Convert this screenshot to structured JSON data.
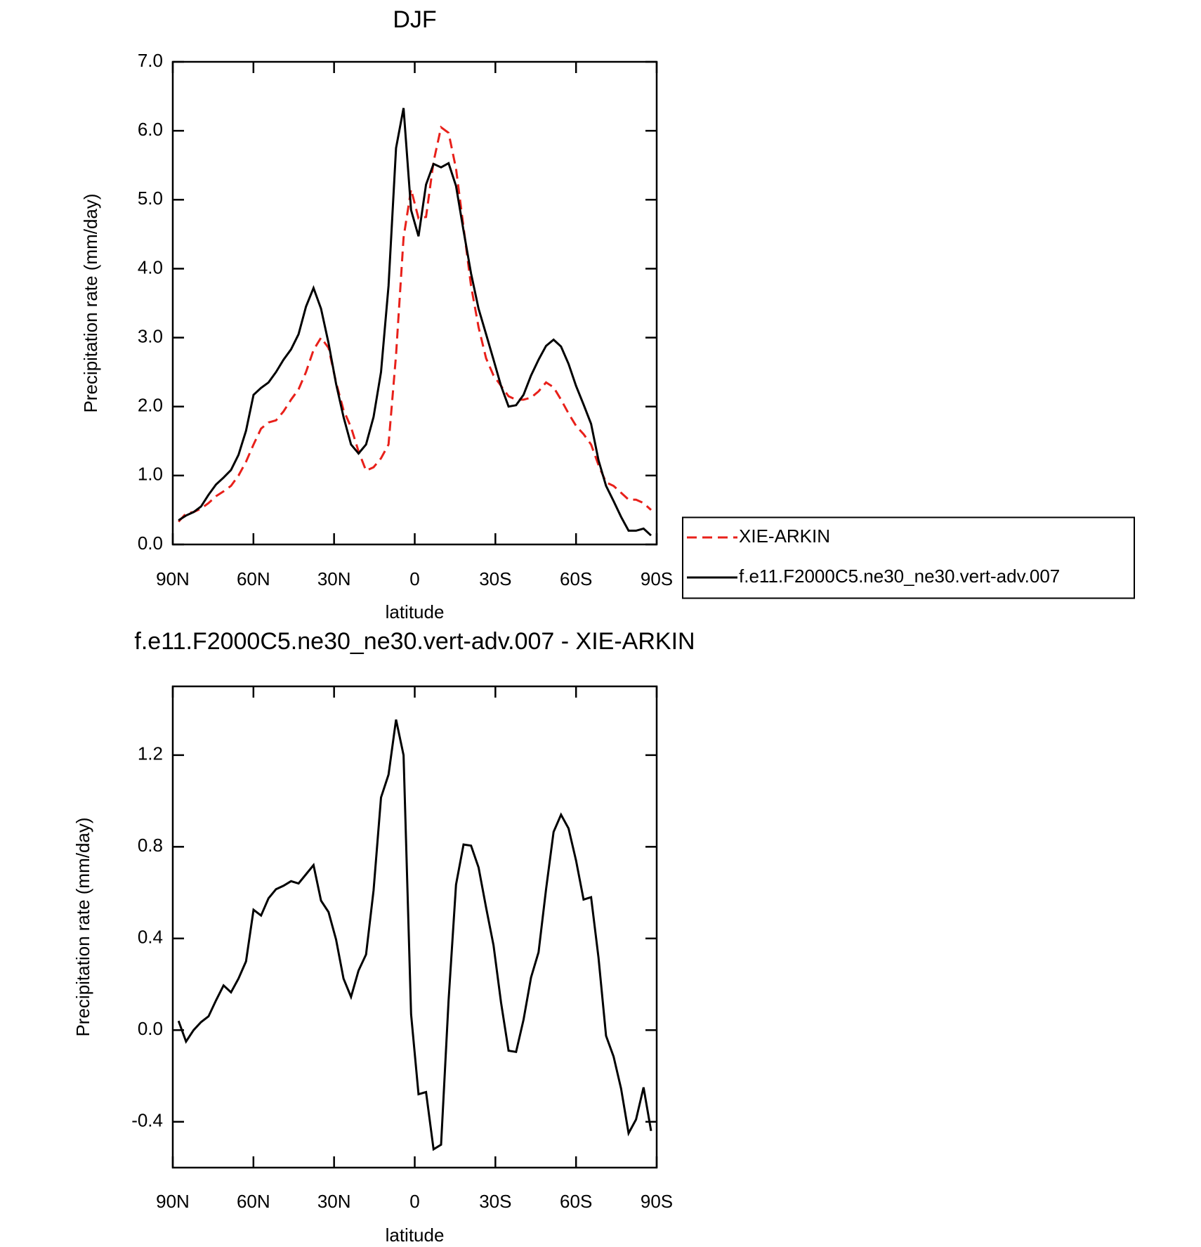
{
  "chart_data": [
    {
      "type": "line",
      "title": "DJF",
      "xlabel": "latitude",
      "ylabel": "Precipitation rate (mm/day)",
      "x": [
        87.86,
        85.07,
        82.28,
        79.49,
        76.7,
        73.91,
        71.12,
        68.33,
        65.54,
        62.75,
        59.96,
        57.17,
        54.38,
        51.59,
        48.8,
        46.01,
        43.22,
        40.43,
        37.64,
        34.85,
        32.06,
        29.27,
        26.48,
        23.69,
        20.9,
        18.11,
        15.32,
        12.53,
        9.74,
        6.95,
        4.16,
        1.37,
        -1.42,
        -4.21,
        -7.0,
        -9.79,
        -12.58,
        -15.37,
        -18.16,
        -20.95,
        -23.74,
        -26.53,
        -29.32,
        -32.11,
        -34.9,
        -37.69,
        -40.48,
        -43.27,
        -46.06,
        -48.85,
        -51.64,
        -54.43,
        -57.22,
        -60.01,
        -62.8,
        -65.59,
        -68.38,
        -71.17,
        -73.96,
        -76.75,
        -79.54,
        -82.33,
        -85.12,
        -87.91
      ],
      "series": [
        {
          "name": "XIE-ARKIN",
          "color": "#e8201a",
          "linestyle": "dashed",
          "values": [
            0.33,
            0.45,
            0.47,
            0.52,
            0.6,
            0.7,
            0.77,
            0.85,
            1.0,
            1.2,
            1.45,
            1.68,
            1.77,
            1.8,
            1.93,
            2.1,
            2.25,
            2.5,
            2.82,
            3.0,
            2.85,
            2.35,
            1.95,
            1.7,
            1.35,
            1.07,
            1.12,
            1.25,
            1.45,
            2.75,
            4.45,
            5.15,
            4.73,
            4.75,
            5.55,
            6.05,
            5.97,
            5.45,
            4.6,
            3.75,
            3.15,
            2.7,
            2.45,
            2.3,
            2.15,
            2.1,
            2.1,
            2.13,
            2.22,
            2.35,
            2.28,
            2.1,
            1.9,
            1.72,
            1.6,
            1.45,
            1.15,
            0.9,
            0.85,
            0.75,
            0.65,
            0.65,
            0.6,
            0.5
          ]
        },
        {
          "name": "f.e11.F2000C5.ne30_ne30.vert-adv.007",
          "color": "#000000",
          "linestyle": "solid",
          "values": [
            0.35,
            0.42,
            0.47,
            0.55,
            0.72,
            0.87,
            0.97,
            1.08,
            1.3,
            1.65,
            2.17,
            2.27,
            2.35,
            2.5,
            2.68,
            2.83,
            3.05,
            3.45,
            3.72,
            3.42,
            2.92,
            2.33,
            1.85,
            1.45,
            1.32,
            1.45,
            1.85,
            2.5,
            3.75,
            5.75,
            6.33,
            4.85,
            4.47,
            5.22,
            5.52,
            5.47,
            5.53,
            5.2,
            4.55,
            3.93,
            3.42,
            3.05,
            2.68,
            2.3,
            2.0,
            2.02,
            2.17,
            2.45,
            2.68,
            2.88,
            2.97,
            2.87,
            2.62,
            2.3,
            2.03,
            1.75,
            1.22,
            0.85,
            0.63,
            0.4,
            0.2,
            0.2,
            0.23,
            0.13
          ]
        }
      ],
      "xlim": [
        90,
        -90
      ],
      "xticks": [
        {
          "value": 90,
          "label": "90N"
        },
        {
          "value": 60,
          "label": "60N"
        },
        {
          "value": 30,
          "label": "30N"
        },
        {
          "value": 0,
          "label": "0"
        },
        {
          "value": -30,
          "label": "30S"
        },
        {
          "value": -60,
          "label": "60S"
        },
        {
          "value": -90,
          "label": "90S"
        }
      ],
      "ylim": [
        0,
        7
      ],
      "yticks": [
        {
          "value": 0,
          "label": "0.0"
        },
        {
          "value": 1,
          "label": "1.0"
        },
        {
          "value": 2,
          "label": "2.0"
        },
        {
          "value": 3,
          "label": "3.0"
        },
        {
          "value": 4,
          "label": "4.0"
        },
        {
          "value": 5,
          "label": "5.0"
        },
        {
          "value": 6,
          "label": "6.0"
        },
        {
          "value": 7,
          "label": "7.0"
        }
      ],
      "legend": "outside-right"
    },
    {
      "type": "line",
      "title": "f.e11.F2000C5.ne30_ne30.vert-adv.007 - XIE-ARKIN",
      "xlabel": "latitude",
      "ylabel": "Precipitation rate (mm/day)",
      "x": [
        87.86,
        85.07,
        82.28,
        79.49,
        76.7,
        73.91,
        71.12,
        68.33,
        65.54,
        62.75,
        59.96,
        57.17,
        54.38,
        51.59,
        48.8,
        46.01,
        43.22,
        40.43,
        37.64,
        34.85,
        32.06,
        29.27,
        26.48,
        23.69,
        20.9,
        18.11,
        15.32,
        12.53,
        9.74,
        6.95,
        4.16,
        1.37,
        -1.42,
        -4.21,
        -7.0,
        -9.79,
        -12.58,
        -15.37,
        -18.16,
        -20.95,
        -23.74,
        -26.53,
        -29.32,
        -32.11,
        -34.9,
        -37.69,
        -40.48,
        -43.27,
        -46.06,
        -48.85,
        -51.64,
        -54.43,
        -57.22,
        -60.01,
        -62.8,
        -65.59,
        -68.38,
        -71.17,
        -73.96,
        -76.75,
        -79.54,
        -82.33,
        -85.12,
        -87.91
      ],
      "color": "#000000",
      "values": [
        0.04,
        -0.05,
        0.0,
        0.035,
        0.06,
        0.13,
        0.195,
        0.165,
        0.225,
        0.3,
        0.525,
        0.5,
        0.575,
        0.615,
        0.63,
        0.65,
        0.64,
        0.68,
        0.72,
        0.565,
        0.515,
        0.395,
        0.225,
        0.145,
        0.26,
        0.33,
        0.61,
        1.015,
        1.115,
        1.355,
        1.2,
        0.07,
        -0.28,
        -0.27,
        -0.52,
        -0.5,
        0.13,
        0.635,
        0.81,
        0.805,
        0.71,
        0.535,
        0.37,
        0.12,
        -0.09,
        -0.095,
        0.045,
        0.23,
        0.34,
        0.615,
        0.865,
        0.94,
        0.88,
        0.74,
        0.57,
        0.58,
        0.315,
        -0.025,
        -0.115,
        -0.255,
        -0.45,
        -0.39,
        -0.25,
        -0.44
      ],
      "xlim": [
        90,
        -90
      ],
      "xticks": [
        {
          "value": 90,
          "label": "90N"
        },
        {
          "value": 60,
          "label": "60N"
        },
        {
          "value": 30,
          "label": "30N"
        },
        {
          "value": 0,
          "label": "0"
        },
        {
          "value": -30,
          "label": "30S"
        },
        {
          "value": -60,
          "label": "60S"
        },
        {
          "value": -90,
          "label": "90S"
        }
      ],
      "ylim": [
        -0.6,
        1.5
      ],
      "yticks": [
        -0.4,
        {
          "value": 0,
          "label": "0.0"
        },
        0.4,
        0.8,
        1.2
      ]
    }
  ]
}
